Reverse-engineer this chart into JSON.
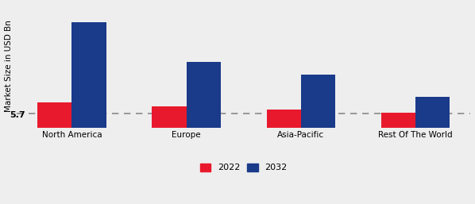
{
  "categories": [
    "North America",
    "Europe",
    "Asia-Pacific",
    "Rest Of The World"
  ],
  "values_2022": [
    5.7,
    4.8,
    4.2,
    3.5
  ],
  "values_2032": [
    24.0,
    15.0,
    12.0,
    7.0
  ],
  "bar_color_2022": "#e8192c",
  "bar_color_2032": "#1a3a8a",
  "ylabel": "Market Size in USD Bn",
  "annotation_text": "5.7",
  "annotation_category": 0,
  "legend_labels": [
    "2022",
    "2032"
  ],
  "background_color": "#eeeeee",
  "dashed_line_y": 3.2,
  "ylim": [
    0,
    28
  ],
  "bar_width": 0.3,
  "axis_fontsize": 7.5,
  "tick_fontsize": 7.5,
  "legend_fontsize": 8.0
}
